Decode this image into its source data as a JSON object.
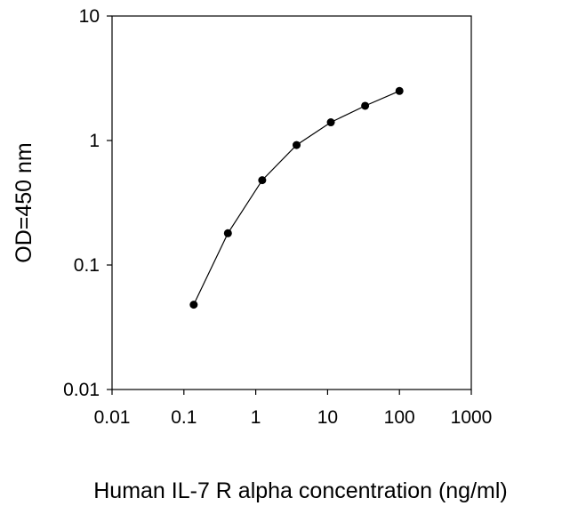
{
  "chart_data": {
    "type": "line",
    "title": "",
    "xlabel": "Human IL-7 R alpha concentration (ng/ml)",
    "ylabel": "OD=450 nm",
    "x_scale": "log",
    "y_scale": "log",
    "xlim": [
      0.01,
      1000
    ],
    "ylim": [
      0.01,
      10
    ],
    "x_ticks": [
      {
        "value": 0.01,
        "label": "0.01"
      },
      {
        "value": 0.1,
        "label": "0.1"
      },
      {
        "value": 1,
        "label": "1"
      },
      {
        "value": 10,
        "label": "10"
      },
      {
        "value": 100,
        "label": "100"
      },
      {
        "value": 1000,
        "label": "1000"
      }
    ],
    "y_ticks": [
      {
        "value": 0.01,
        "label": "0.01"
      },
      {
        "value": 0.1,
        "label": "0.1"
      },
      {
        "value": 1,
        "label": "1"
      },
      {
        "value": 10,
        "label": "10"
      }
    ],
    "grid": false,
    "legend": "none",
    "series": [
      {
        "x": [
          0.137,
          0.41,
          1.23,
          3.7,
          11.1,
          33.3,
          100
        ],
        "y": [
          0.048,
          0.18,
          0.48,
          0.92,
          1.4,
          1.9,
          2.5
        ],
        "color": "#000000",
        "marker": "circle"
      }
    ]
  }
}
